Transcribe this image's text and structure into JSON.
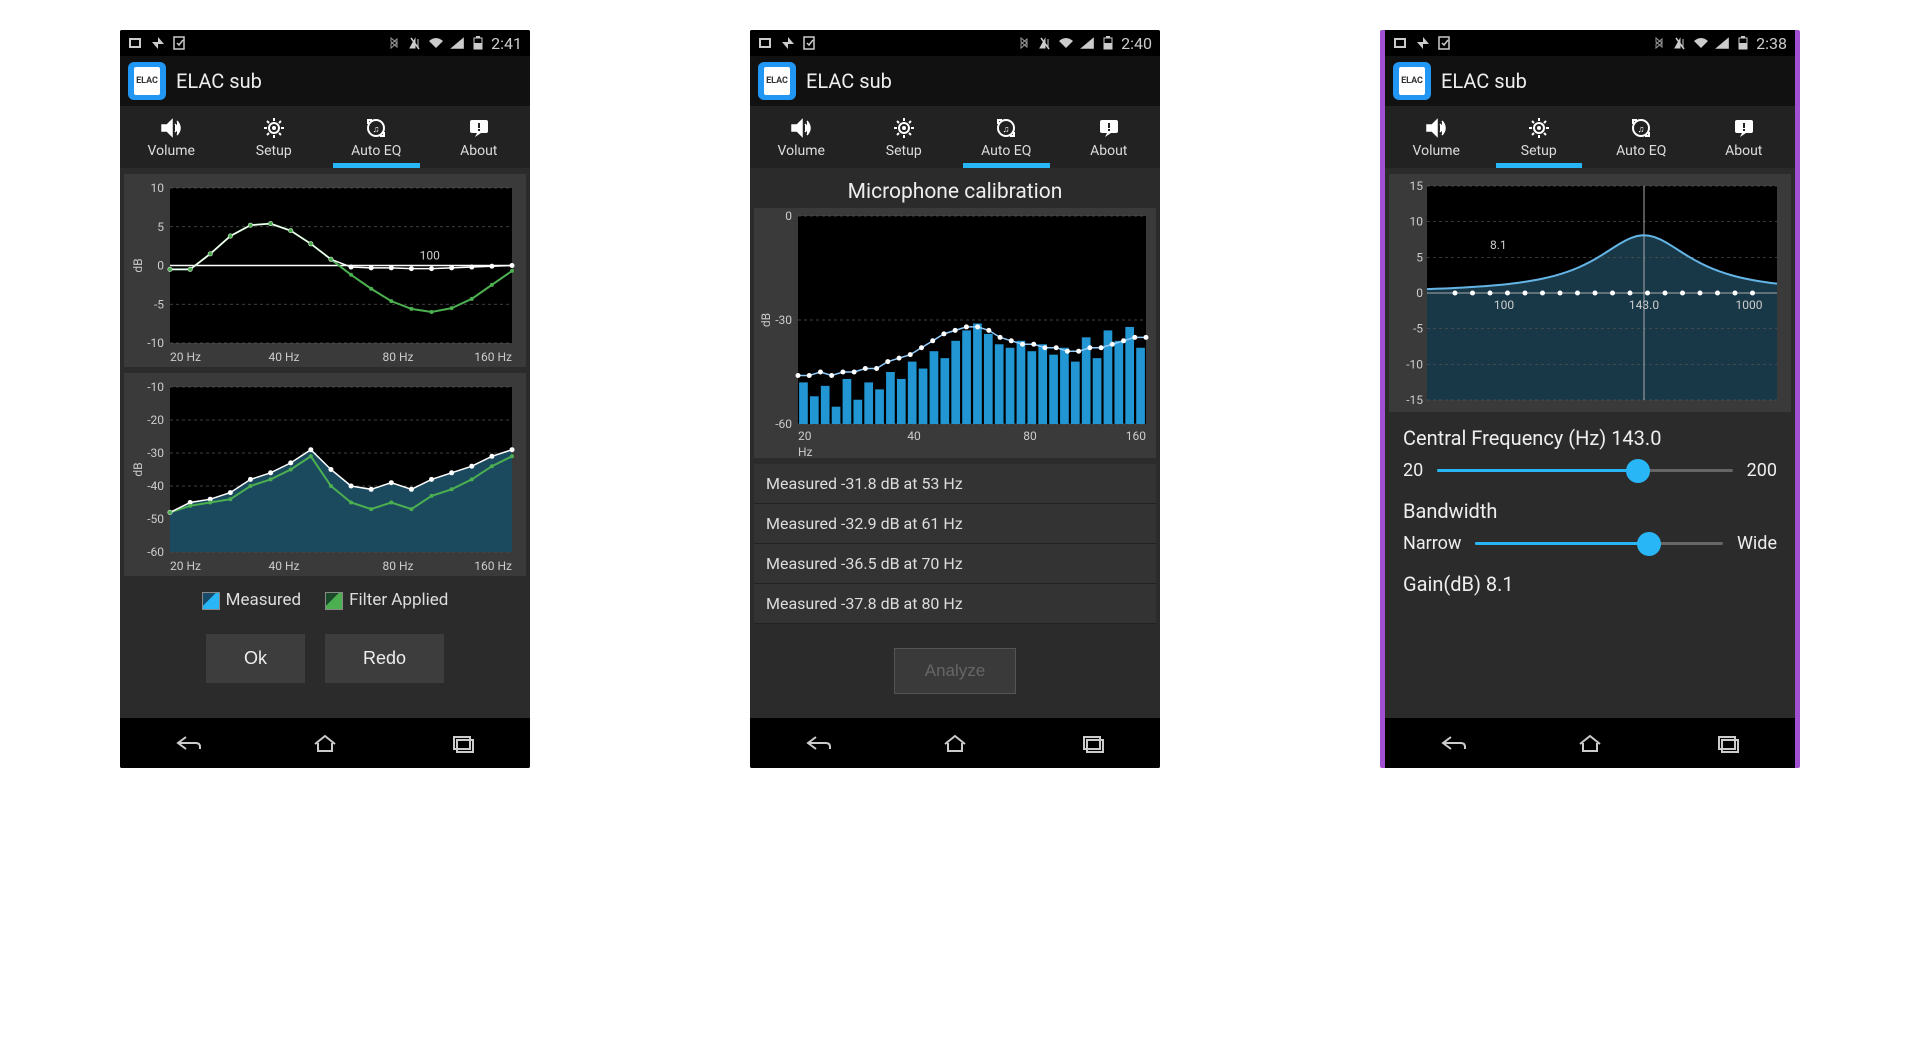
{
  "phones": [
    {
      "time": "2:41",
      "app_title": "ELAC sub",
      "active_tab": 2,
      "tabs": [
        "Volume",
        "Setup",
        "Auto EQ",
        "About"
      ],
      "chart1": {
        "type": "line",
        "ylabel": "dB",
        "ylim": [
          -10,
          10
        ],
        "yticks": [
          -10,
          -5,
          0,
          5,
          10
        ],
        "xticks": [
          "20 Hz",
          "40 Hz",
          "80 Hz",
          "160 Hz"
        ],
        "marker_label": "100",
        "series_white": [
          -0.5,
          -0.5,
          1.5,
          3.8,
          5.2,
          5.4,
          4.5,
          2.8,
          0.8,
          -0.2,
          -0.3,
          -0.3,
          -0.4,
          -0.4,
          -0.3,
          -0.2,
          -0.1,
          0
        ],
        "series_green": [
          -0.5,
          -0.5,
          1.5,
          3.8,
          5.2,
          5.4,
          4.5,
          2.8,
          0.8,
          -1.2,
          -3.0,
          -4.6,
          -5.6,
          -6.0,
          -5.5,
          -4.3,
          -2.5,
          -0.7
        ],
        "line_color": "#4caf50",
        "marker_color": "#ffffff",
        "grid_color": "#555555",
        "bg": "#000000"
      },
      "chart2": {
        "type": "line-area",
        "ylabel": "dB",
        "ylim": [
          -60,
          -10
        ],
        "yticks": [
          -60,
          -50,
          -40,
          -30,
          -20,
          -10
        ],
        "xticks": [
          "20 Hz",
          "40 Hz",
          "80 Hz",
          "160 Hz"
        ],
        "series_white": [
          -48,
          -45,
          -44,
          -42,
          -38,
          -36,
          -33,
          -29,
          -35,
          -40,
          -41,
          -39,
          -41,
          -38,
          -36,
          -34,
          -31,
          -29
        ],
        "series_green": [
          -48,
          -46,
          -45,
          -44,
          -40,
          -38,
          -35,
          -31,
          -40,
          -45,
          -47,
          -45,
          -47,
          -43,
          -41,
          -38,
          -34,
          -31
        ],
        "area_color": "#1b4a5f",
        "line_color_white": "#ffffff",
        "line_color_green": "#4caf50",
        "grid_color": "#555555",
        "bg": "#000000"
      },
      "legend": {
        "measured": "Measured",
        "filter": "Filter Applied"
      },
      "buttons": {
        "ok": "Ok",
        "redo": "Redo"
      }
    },
    {
      "time": "2:40",
      "app_title": "ELAC sub",
      "active_tab": 2,
      "tabs": [
        "Volume",
        "Setup",
        "Auto EQ",
        "About"
      ],
      "section_title": "Microphone calibration",
      "chart": {
        "type": "bar-line",
        "ylabel": "dB",
        "ylim": [
          -60,
          0
        ],
        "yticks": [
          -60,
          -30,
          0
        ],
        "xticks": [
          "20",
          "40",
          "80",
          "160"
        ],
        "xlabel": "Hz",
        "bars": [
          -48,
          -52,
          -49,
          -55,
          -47,
          -53,
          -48,
          -50,
          -45,
          -47,
          -42,
          -44,
          -39,
          -41,
          -36,
          -33,
          -31,
          -34,
          -37,
          -38,
          -36,
          -39,
          -37,
          -40,
          -38,
          -42,
          -35,
          -41,
          -33,
          -36,
          -32,
          -38
        ],
        "line": [
          -46,
          -46,
          -45,
          -46,
          -45,
          -45,
          -44,
          -44,
          -42,
          -41,
          -40,
          -38,
          -36,
          -34,
          -33,
          -32,
          -32,
          -33,
          -35,
          -36,
          -37,
          -37,
          -38,
          -38,
          -39,
          -39,
          -38,
          -38,
          -37,
          -36,
          -35,
          -35
        ],
        "bar_color": "#2196d3",
        "line_color": "#90caf9",
        "marker_color": "#ffffff",
        "grid_color": "#555555",
        "bg": "#000000"
      },
      "measurements": [
        "Measured -31.8 dB at 53 Hz",
        "Measured -32.9 dB at 61 Hz",
        "Measured -36.5 dB at 70 Hz",
        "Measured -37.8 dB at 80 Hz"
      ],
      "analyze_btn": "Analyze"
    },
    {
      "time": "2:38",
      "app_title": "ELAC sub",
      "active_tab": 1,
      "tabs": [
        "Volume",
        "Setup",
        "Auto EQ",
        "About"
      ],
      "chart": {
        "type": "eq-curve",
        "ylim": [
          -15,
          15
        ],
        "yticks": [
          -15,
          -10,
          -5,
          0,
          5,
          10,
          15
        ],
        "xticks_pos": [
          0.22,
          0.62,
          0.92
        ],
        "xticks": [
          "100",
          "143.0",
          "1000"
        ],
        "gain_label": "8.1",
        "peak_x": 0.62,
        "peak_y": 8.1,
        "curve_color": "#64b5e6",
        "area_color": "#183848",
        "bg": "#000000",
        "grid_color": "#555555"
      },
      "cf_label": "Central Frequency (Hz) 143.0",
      "cf_min": "20",
      "cf_max": "200",
      "cf_pct": 68,
      "bw_label": "Bandwidth",
      "bw_min": "Narrow",
      "bw_max": "Wide",
      "bw_pct": 70,
      "gain_label": "Gain(dB) 8.1"
    }
  ],
  "colors": {
    "accent": "#29b6f6",
    "bg_dark": "#2b2b2b",
    "panel": "#3a3a3a"
  }
}
